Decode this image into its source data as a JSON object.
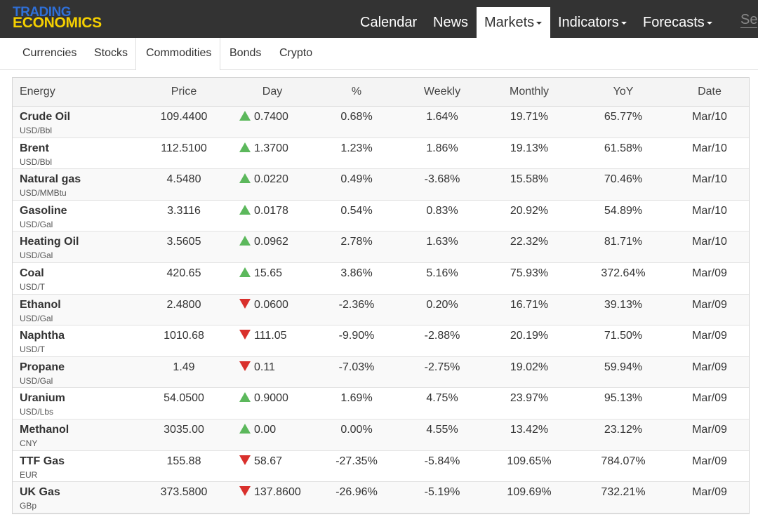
{
  "logo": {
    "line1": "TRADING",
    "line2": "ECONOMICS"
  },
  "nav": [
    {
      "label": "Calendar",
      "caret": false,
      "active": false
    },
    {
      "label": "News",
      "caret": false,
      "active": false
    },
    {
      "label": "Markets",
      "caret": true,
      "active": true
    },
    {
      "label": "Indicators",
      "caret": true,
      "active": false
    },
    {
      "label": "Forecasts",
      "caret": true,
      "active": false
    }
  ],
  "search": {
    "partial_text": "Se"
  },
  "subnav": [
    "Currencies",
    "Stocks",
    "Commodities",
    "Bonds",
    "Crypto"
  ],
  "subnav_active": "Commodities",
  "table": {
    "headers": [
      "Energy",
      "Price",
      "Day",
      "%",
      "Weekly",
      "Monthly",
      "YoY",
      "Date"
    ],
    "rows": [
      {
        "name": "Crude Oil",
        "unit": "USD/Bbl",
        "price": "109.4400",
        "dir": "up",
        "day": "0.7400",
        "pct": "0.68%",
        "weekly": "1.64%",
        "monthly": "19.71%",
        "yoy": "65.77%",
        "date": "Mar/10"
      },
      {
        "name": "Brent",
        "unit": "USD/Bbl",
        "price": "112.5100",
        "dir": "up",
        "day": "1.3700",
        "pct": "1.23%",
        "weekly": "1.86%",
        "monthly": "19.13%",
        "yoy": "61.58%",
        "date": "Mar/10"
      },
      {
        "name": "Natural gas",
        "unit": "USD/MMBtu",
        "price": "4.5480",
        "dir": "up",
        "day": "0.0220",
        "pct": "0.49%",
        "weekly": "-3.68%",
        "monthly": "15.58%",
        "yoy": "70.46%",
        "date": "Mar/10"
      },
      {
        "name": "Gasoline",
        "unit": "USD/Gal",
        "price": "3.3116",
        "dir": "up",
        "day": "0.0178",
        "pct": "0.54%",
        "weekly": "0.83%",
        "monthly": "20.92%",
        "yoy": "54.89%",
        "date": "Mar/10"
      },
      {
        "name": "Heating Oil",
        "unit": "USD/Gal",
        "price": "3.5605",
        "dir": "up",
        "day": "0.0962",
        "pct": "2.78%",
        "weekly": "1.63%",
        "monthly": "22.32%",
        "yoy": "81.71%",
        "date": "Mar/10"
      },
      {
        "name": "Coal",
        "unit": "USD/T",
        "price": "420.65",
        "dir": "up",
        "day": "15.65",
        "pct": "3.86%",
        "weekly": "5.16%",
        "monthly": "75.93%",
        "yoy": "372.64%",
        "date": "Mar/09"
      },
      {
        "name": "Ethanol",
        "unit": "USD/Gal",
        "price": "2.4800",
        "dir": "down",
        "day": "0.0600",
        "pct": "-2.36%",
        "weekly": "0.20%",
        "monthly": "16.71%",
        "yoy": "39.13%",
        "date": "Mar/09"
      },
      {
        "name": "Naphtha",
        "unit": "USD/T",
        "price": "1010.68",
        "dir": "down",
        "day": "111.05",
        "pct": "-9.90%",
        "weekly": "-2.88%",
        "monthly": "20.19%",
        "yoy": "71.50%",
        "date": "Mar/09"
      },
      {
        "name": "Propane",
        "unit": "USD/Gal",
        "price": "1.49",
        "dir": "down",
        "day": "0.11",
        "pct": "-7.03%",
        "weekly": "-2.75%",
        "monthly": "19.02%",
        "yoy": "59.94%",
        "date": "Mar/09"
      },
      {
        "name": "Uranium",
        "unit": "USD/Lbs",
        "price": "54.0500",
        "dir": "up",
        "day": "0.9000",
        "pct": "1.69%",
        "weekly": "4.75%",
        "monthly": "23.97%",
        "yoy": "95.13%",
        "date": "Mar/09"
      },
      {
        "name": "Methanol",
        "unit": "CNY",
        "price": "3035.00",
        "dir": "up",
        "day": "0.00",
        "pct": "0.00%",
        "weekly": "4.55%",
        "monthly": "13.42%",
        "yoy": "23.12%",
        "date": "Mar/09"
      },
      {
        "name": "TTF Gas",
        "unit": "EUR",
        "price": "155.88",
        "dir": "down",
        "day": "58.67",
        "pct": "-27.35%",
        "weekly": "-5.84%",
        "monthly": "109.65%",
        "yoy": "784.07%",
        "date": "Mar/09"
      },
      {
        "name": "UK Gas",
        "unit": "GBp",
        "price": "373.5800",
        "dir": "down",
        "day": "137.8600",
        "pct": "-26.96%",
        "weekly": "-5.19%",
        "monthly": "109.69%",
        "yoy": "732.21%",
        "date": "Mar/09"
      }
    ]
  },
  "colors": {
    "topbar": "#333333",
    "logo_blue": "#2f6fd6",
    "logo_yellow": "#f5d000",
    "up": "#5cb85c",
    "down": "#d9302c"
  }
}
